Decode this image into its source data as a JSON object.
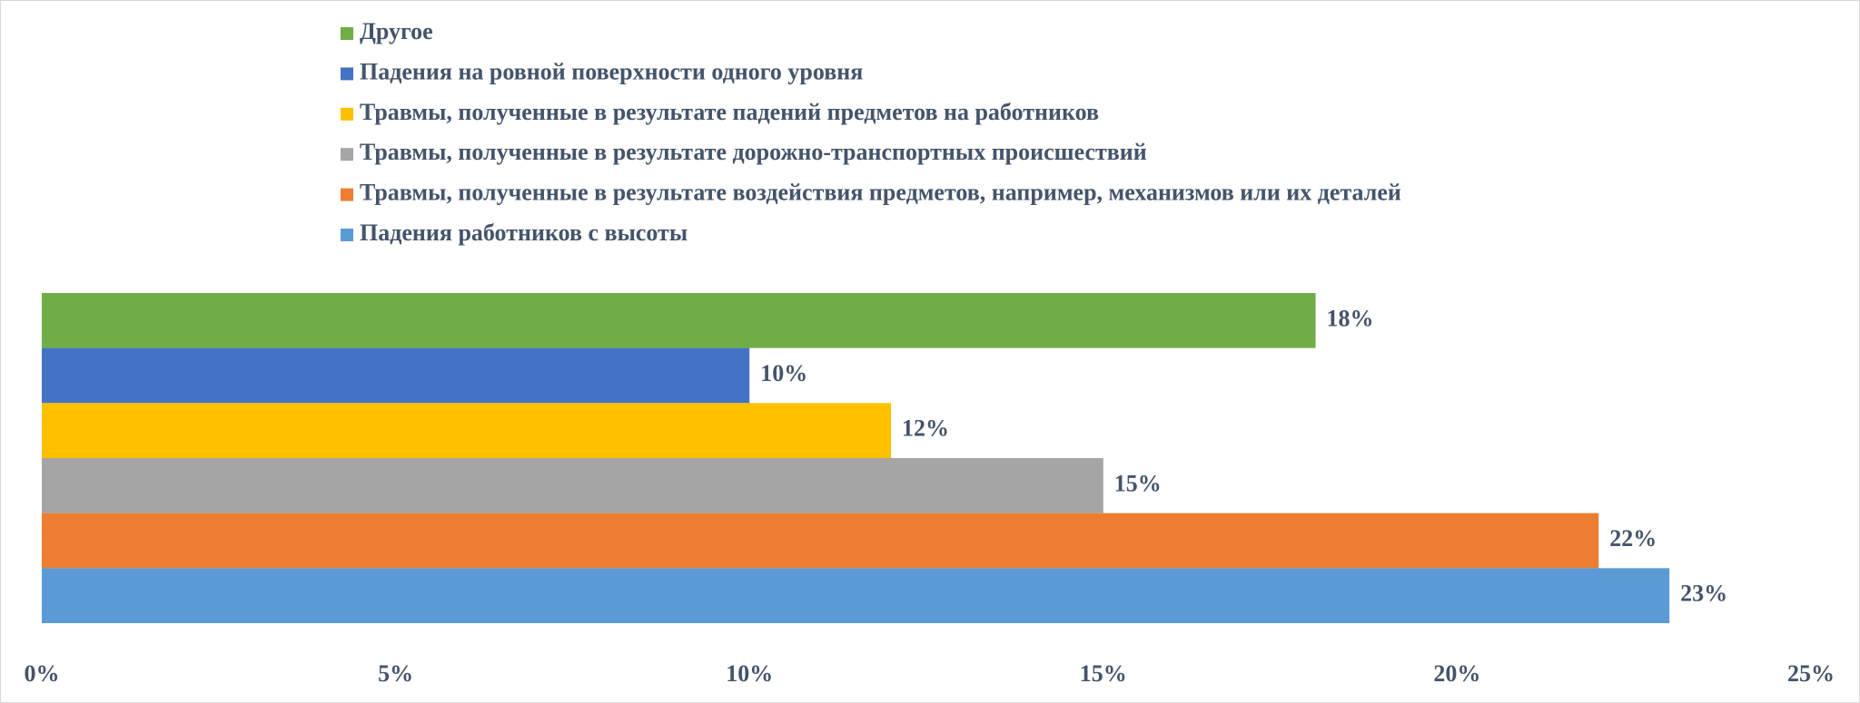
{
  "chart_data": {
    "type": "hbar",
    "series": [
      {
        "name": "Другое",
        "color": "#70ad47",
        "values": [
          18
        ],
        "value_labels": [
          "18%"
        ]
      },
      {
        "name": "Падения на ровной поверхности одного уровня",
        "color": "#4472c4",
        "values": [
          10
        ],
        "value_labels": [
          "10%"
        ]
      },
      {
        "name": "Травмы, полученные в результате падений предметов на работников",
        "color": "#ffc000",
        "values": [
          12
        ],
        "value_labels": [
          "12%"
        ]
      },
      {
        "name": "Травмы, полученные в результате дорожно-транспортных  происшествий",
        "color": "#a5a5a5",
        "values": [
          15
        ],
        "value_labels": [
          "15%"
        ]
      },
      {
        "name": "Травмы, полученные в результате воздействия предметов, например, механизмов или их деталей",
        "color": "#ed7d31",
        "values": [
          22
        ],
        "value_labels": [
          "22%"
        ]
      },
      {
        "name": "Падения работников с высоты",
        "color": "#5b9bd5",
        "values": [
          23
        ],
        "value_labels": [
          "23%"
        ]
      }
    ],
    "xlim": [
      0,
      25
    ],
    "xticks": [
      {
        "value": 0,
        "label": "0%"
      },
      {
        "value": 5,
        "label": "5%"
      },
      {
        "value": 10,
        "label": "10%"
      },
      {
        "value": 15,
        "label": "15%"
      },
      {
        "value": 20,
        "label": "20%"
      },
      {
        "value": 25,
        "label": "25%"
      }
    ],
    "legend": "top"
  }
}
